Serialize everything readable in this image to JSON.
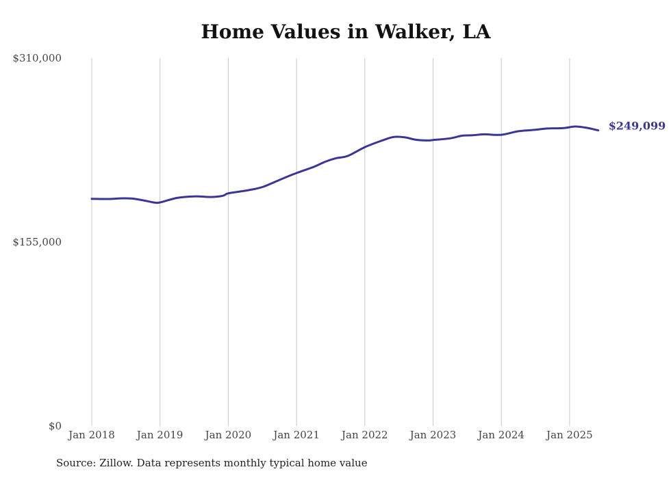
{
  "chart_data": {
    "type": "line",
    "title": "Home Values in Walker, LA",
    "xlabel": "",
    "ylabel": "",
    "ylim": [
      0,
      310000
    ],
    "y_ticks": [
      {
        "value": 0,
        "label": "$0"
      },
      {
        "value": 155000,
        "label": "$155,000"
      },
      {
        "value": 310000,
        "label": "$310,000"
      }
    ],
    "x_ticks": [
      {
        "value": 2018.0,
        "label": "Jan 2018"
      },
      {
        "value": 2019.0,
        "label": "Jan 2019"
      },
      {
        "value": 2020.0,
        "label": "Jan 2020"
      },
      {
        "value": 2021.0,
        "label": "Jan 2021"
      },
      {
        "value": 2022.0,
        "label": "Jan 2022"
      },
      {
        "value": 2023.0,
        "label": "Jan 2023"
      },
      {
        "value": 2024.0,
        "label": "Jan 2024"
      },
      {
        "value": 2025.0,
        "label": "Jan 2025"
      }
    ],
    "grid": "vertical",
    "series": [
      {
        "name": "Typical home value",
        "color": "#3a3596",
        "end_label": "$249,099",
        "points": [
          [
            2018.0,
            191500
          ],
          [
            2018.25,
            191300
          ],
          [
            2018.42,
            191800
          ],
          [
            2018.58,
            191700
          ],
          [
            2018.75,
            190200
          ],
          [
            2018.92,
            188300
          ],
          [
            2019.0,
            188400
          ],
          [
            2019.25,
            192200
          ],
          [
            2019.5,
            193500
          ],
          [
            2019.75,
            193000
          ],
          [
            2019.92,
            194000
          ],
          [
            2020.0,
            196100
          ],
          [
            2020.25,
            198300
          ],
          [
            2020.5,
            201400
          ],
          [
            2020.75,
            207400
          ],
          [
            2021.0,
            213200
          ],
          [
            2021.25,
            218300
          ],
          [
            2021.42,
            222700
          ],
          [
            2021.58,
            225700
          ],
          [
            2021.75,
            227600
          ],
          [
            2022.0,
            235000
          ],
          [
            2022.25,
            240500
          ],
          [
            2022.42,
            243500
          ],
          [
            2022.58,
            243300
          ],
          [
            2022.75,
            241200
          ],
          [
            2022.92,
            240600
          ],
          [
            2023.0,
            241000
          ],
          [
            2023.25,
            242400
          ],
          [
            2023.42,
            244600
          ],
          [
            2023.58,
            245000
          ],
          [
            2023.75,
            245800
          ],
          [
            2024.0,
            245400
          ],
          [
            2024.25,
            248400
          ],
          [
            2024.5,
            249600
          ],
          [
            2024.67,
            250700
          ],
          [
            2024.92,
            251100
          ],
          [
            2025.08,
            252400
          ],
          [
            2025.25,
            251300
          ],
          [
            2025.42,
            249099
          ]
        ]
      }
    ]
  },
  "footer": {
    "source": "Source: Zillow. Data represents monthly typical home value"
  }
}
